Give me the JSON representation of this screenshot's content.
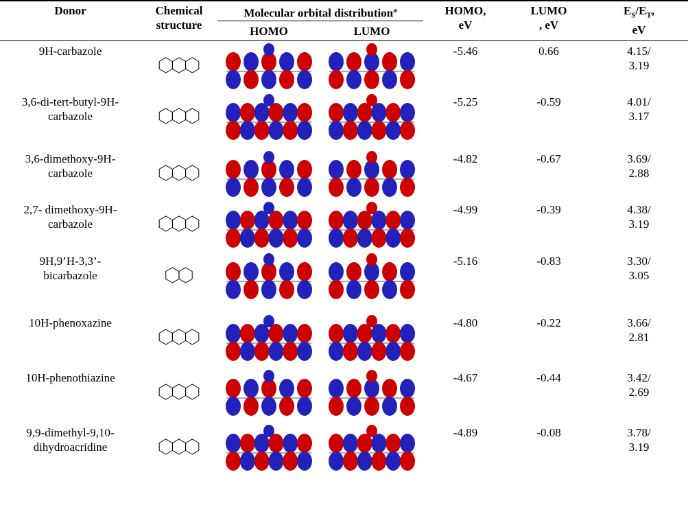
{
  "header": {
    "donor": "Donor",
    "structure": [
      "Chemical",
      "structure"
    ],
    "orbital": "Molecular orbital distribution",
    "orbital_note": "a",
    "homo": "HOMO",
    "lumo": "LUMO",
    "homo_ev": [
      "HOMO,",
      "eV"
    ],
    "lumo_ev": [
      "LUMO",
      ", eV"
    ],
    "es_et": {
      "e1": "E",
      "s": "S",
      "e2": "/E",
      "t": "T",
      "unit": ",",
      "ev": "eV"
    }
  },
  "rows": [
    {
      "donor": "9H-carbazole",
      "homo": "-5.46",
      "lumo": "0.66",
      "es_et": [
        "4.15/",
        "3.19"
      ]
    },
    {
      "donor": "3,6-di-tert-butyl-9H-carbazole",
      "homo": "-5.25",
      "lumo": "-0.59",
      "es_et": [
        "4.01/",
        "3.17"
      ]
    },
    {
      "donor": "3,6-dimethoxy-9H-carbazole",
      "homo": "-4.82",
      "lumo": "-0.67",
      "es_et": [
        "3.69/",
        "2.88"
      ]
    },
    {
      "donor": "2,7- dimethoxy-9H-carbazole",
      "homo": "-4.99",
      "lumo": "-0.39",
      "es_et": [
        "4.38/",
        "3.19"
      ]
    },
    {
      "donor": "9H,9’H-3,3’-bicarbazole",
      "homo": "-5.16",
      "lumo": "-0.83",
      "es_et": [
        "3.30/",
        "3.05"
      ]
    },
    {
      "donor": "10H-phenoxazine",
      "homo": "-4.80",
      "lumo": "-0.22",
      "es_et": [
        "3.66/",
        "2.81"
      ]
    },
    {
      "donor": "10H-phenothiazine",
      "homo": "-4.67",
      "lumo": "-0.44",
      "es_et": [
        "3.42/",
        "2.69"
      ]
    },
    {
      "donor": "9,9-dimethyl-9,10-dihydroacridine",
      "homo": "-4.89",
      "lumo": "-0.08",
      "es_et": [
        "3.78/",
        "3.19"
      ]
    }
  ]
}
